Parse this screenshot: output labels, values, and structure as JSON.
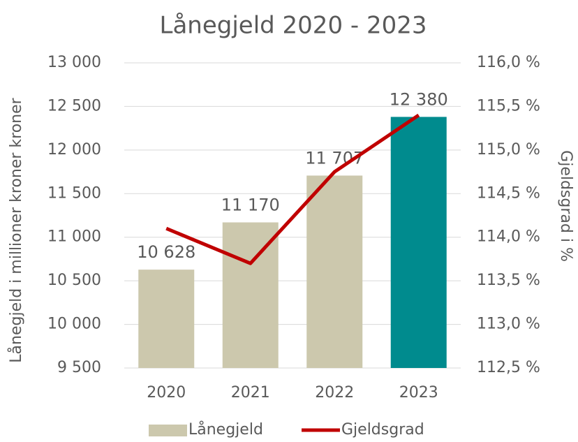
{
  "chart_data": {
    "type": "bar",
    "title": "Lånegjeld 2020 - 2023",
    "categories": [
      "2020",
      "2021",
      "2022",
      "2023"
    ],
    "series": [
      {
        "name": "Lånegjeld",
        "type": "bar",
        "color": "#ccc8ad",
        "colors": [
          "#ccc8ad",
          "#ccc8ad",
          "#ccc8ad",
          "#008b8e"
        ],
        "values": [
          10628,
          11170,
          11707,
          12380
        ],
        "value_labels": [
          "10 628",
          "11 170",
          "11 707",
          "12 380"
        ]
      },
      {
        "name": "Gjeldsgrad",
        "type": "line",
        "axis": "y2",
        "color": "#c00000",
        "values": [
          114.1,
          113.7,
          114.75,
          115.4
        ]
      }
    ],
    "ylabel": "Lånegjeld i millioner kroner kroner",
    "y2label": "Gjeldsgrad i %",
    "ylim": [
      9500,
      13000
    ],
    "yticks": [
      {
        "value": 9500,
        "label": "9 500"
      },
      {
        "value": 10000,
        "label": "10 000"
      },
      {
        "value": 10500,
        "label": "10 500"
      },
      {
        "value": 11000,
        "label": "11 000"
      },
      {
        "value": 11500,
        "label": "11 500"
      },
      {
        "value": 12000,
        "label": "12 000"
      },
      {
        "value": 12500,
        "label": "12 500"
      },
      {
        "value": 13000,
        "label": "13 000"
      }
    ],
    "y2lim": [
      112.5,
      116.0
    ],
    "y2ticks": [
      {
        "value": 112.5,
        "label": "112,5 %"
      },
      {
        "value": 113.0,
        "label": "113,0 %"
      },
      {
        "value": 113.5,
        "label": "113,5 %"
      },
      {
        "value": 114.0,
        "label": "114,0 %"
      },
      {
        "value": 114.5,
        "label": "114,5 %"
      },
      {
        "value": 115.0,
        "label": "115,0 %"
      },
      {
        "value": 115.5,
        "label": "115,5 %"
      },
      {
        "value": 116.0,
        "label": "116,0 %"
      }
    ],
    "grid": true,
    "legend": "bottom"
  }
}
